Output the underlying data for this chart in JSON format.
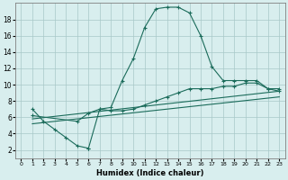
{
  "xlabel": "Humidex (Indice chaleur)",
  "bg_color": "#d8eeee",
  "grid_color": "#a8c8c8",
  "line_color": "#1a6b5a",
  "xlim": [
    -0.5,
    23.5
  ],
  "ylim": [
    1,
    20
  ],
  "xticks": [
    0,
    1,
    2,
    3,
    4,
    5,
    6,
    7,
    8,
    9,
    10,
    11,
    12,
    13,
    14,
    15,
    16,
    17,
    18,
    19,
    20,
    21,
    22,
    23
  ],
  "yticks": [
    2,
    4,
    6,
    8,
    10,
    12,
    14,
    16,
    18
  ],
  "series": [
    {
      "x": [
        1,
        2,
        3,
        4,
        5,
        6,
        6,
        7,
        8,
        9,
        10,
        11,
        12,
        13,
        14,
        15,
        16,
        17,
        18,
        19,
        20,
        21,
        22,
        23
      ],
      "y": [
        7,
        5.5,
        4.5,
        3.5,
        2.5,
        2.2,
        2.2,
        7.0,
        7.2,
        10.5,
        13.2,
        17.0,
        19.3,
        19.5,
        19.5,
        18.8,
        16.0,
        12.2,
        10.5,
        10.5,
        10.5,
        10.5,
        9.5,
        9.5
      ],
      "marker": true
    },
    {
      "x": [
        1,
        5,
        6,
        7,
        8,
        9,
        10,
        11,
        12,
        13,
        14,
        15,
        16,
        17,
        18,
        19,
        20,
        21,
        22,
        23
      ],
      "y": [
        6.2,
        5.5,
        6.5,
        7.0,
        6.8,
        6.8,
        7.0,
        7.5,
        8.0,
        8.5,
        9.0,
        9.5,
        9.5,
        9.5,
        9.8,
        9.8,
        10.2,
        10.2,
        9.5,
        9.2
      ],
      "marker": true
    },
    {
      "x": [
        1,
        23
      ],
      "y": [
        5.8,
        9.2
      ],
      "marker": false
    },
    {
      "x": [
        1,
        23
      ],
      "y": [
        5.2,
        8.5
      ],
      "marker": false
    }
  ]
}
